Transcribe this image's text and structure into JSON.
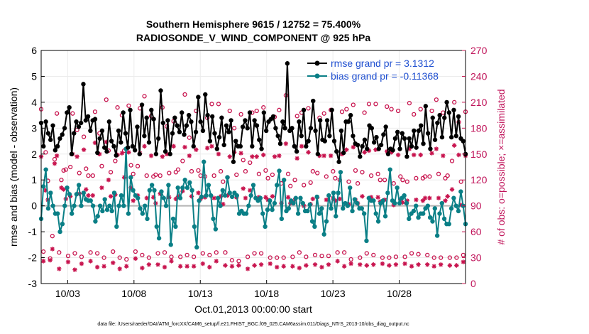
{
  "chart_data": {
    "type": "line",
    "title_line1": "Southern Hemisphere 9615 / 12752 = 75.400%",
    "title_line2": "RADIOSONDE_V_WIND_COMPONENT @ 925 hPa",
    "ylabel": "rmse and bias (model - observation)",
    "y2label": "# of obs: o=possible; ×=assimilated",
    "xlabel": "Oct.01,2013 00:00:00 start",
    "footnote": "data file: /Users/raeder/DAI/ATM_forcXX/CAM6_setup/f.e21.FHIST_BGC.f09_025.CAM6assim.011/Diags_NTrS_2013-10/obs_diag_output.nc",
    "xlim": [
      1,
      33
    ],
    "ylim": [
      -3,
      6
    ],
    "y2lim": [
      0,
      270
    ],
    "xticks": [
      3,
      8,
      13,
      18,
      23,
      28
    ],
    "xtick_labels": [
      "10/03",
      "10/08",
      "10/13",
      "10/18",
      "10/23",
      "10/28"
    ],
    "yticks": [
      -3,
      -2,
      -1,
      0,
      1,
      2,
      3,
      4,
      5,
      6
    ],
    "ytick_labels": [
      "-3",
      "-2",
      "-1",
      "0",
      "1",
      "2",
      "3",
      "4",
      "5",
      "6"
    ],
    "y2ticks": [
      0,
      30,
      60,
      90,
      120,
      150,
      180,
      210,
      240,
      270
    ],
    "y2tick_labels": [
      "0",
      "30",
      "60",
      "90",
      "120",
      "150",
      "180",
      "210",
      "240",
      "270"
    ],
    "legend": [
      {
        "name": "rmse grand pr = 3.1312",
        "color": "#000000"
      },
      {
        "name": "bias grand pr = -0.11368",
        "color": "#0a7f86"
      }
    ],
    "colors": {
      "rmse": "#000000",
      "bias": "#0a7f86",
      "obs": "#c8154f",
      "zero": "#b4b4b4",
      "grid": "#ececec"
    },
    "series": [
      {
        "name": "rmse",
        "values": [
          3.2,
          2.3,
          3.25,
          2.8,
          2.55,
          3.1,
          2.15,
          2.3,
          2.6,
          2.75,
          3.0,
          3.6,
          3.8,
          2.0,
          2.8,
          3.25,
          3.05,
          3.2,
          4.7,
          3.3,
          3.45,
          2.9,
          3.3,
          3.35,
          2.05,
          2.6,
          2.9,
          2.25,
          2.1,
          3.25,
          2.5,
          2.3,
          1.95,
          2.9,
          2.45,
          3.6,
          2.8,
          2.25,
          3.7,
          2.3,
          2.15,
          3.05,
          2.0,
          3.9,
          2.7,
          3.4,
          2.45,
          3.7,
          3.35,
          2.0,
          2.6,
          4.45,
          3.2,
          2.1,
          3.3,
          2.0,
          2.8,
          3.4,
          3.1,
          2.85,
          3.6,
          2.75,
          3.1,
          3.5,
          3.25,
          2.3,
          2.85,
          4.2,
          3.25,
          2.9,
          4.3,
          3.5,
          2.5,
          3.45,
          2.8,
          2.2,
          2.65,
          3.4,
          2.35,
          3.1,
          2.85,
          3.3,
          1.7,
          2.5,
          2.3,
          2.3,
          3.05,
          3.3,
          3.0,
          3.6,
          2.3,
          3.3,
          3.1,
          2.55,
          2.2,
          3.6,
          2.9,
          3.25,
          3.35,
          3.45,
          3.0,
          2.7,
          2.4,
          3.25,
          3.0,
          5.5,
          2.9,
          3.0,
          2.3,
          2.1,
          3.25,
          2.7,
          3.7,
          2.3,
          2.5,
          3.0,
          4.05,
          2.9,
          2.0,
          3.3,
          2.55,
          2.5,
          3.3,
          2.7,
          3.7,
          2.5,
          2.1,
          1.7,
          2.9,
          2.05,
          3.25,
          3.25,
          3.5,
          2.7,
          2.4,
          2.35,
          1.9,
          2.3,
          2.55,
          2.2,
          3.1,
          3.0,
          2.45,
          2.65,
          2.2,
          2.35,
          2.75,
          3.05,
          2.0,
          2.2,
          2.15,
          2.6,
          2.85,
          2.2,
          2.8,
          2.6,
          1.9,
          2.6,
          2.3,
          2.9,
          2.25,
          2.9,
          3.1,
          2.4,
          3.85,
          2.8,
          2.2,
          3.4,
          2.55,
          3.2,
          3.5,
          2.65,
          3.4,
          4.0,
          3.6,
          2.65,
          3.7,
          2.7,
          3.45,
          2.6,
          2.5,
          2.0
        ]
      },
      {
        "name": "bias",
        "values": [
          -0.5,
          0.75,
          1.4,
          -0.1,
          0.5,
          0.0,
          -0.3,
          -0.3,
          -1.0,
          -0.7,
          0.0,
          0.7,
          0.45,
          -0.3,
          0.0,
          0.45,
          0.8,
          0.0,
          0.5,
          0.25,
          0.2,
          0.2,
          0.0,
          -0.6,
          -0.4,
          0.0,
          -0.2,
          0.25,
          -0.15,
          0.0,
          -0.2,
          0.5,
          -0.8,
          0.0,
          0.4,
          0.0,
          2.2,
          -0.3,
          1.1,
          0.6,
          0.4,
          0.3,
          -0.1,
          -0.3,
          0.0,
          -0.5,
          0.6,
          0.8,
          0.6,
          -0.8,
          -1.25,
          0.55,
          0.3,
          0.0,
          0.8,
          -1.5,
          -0.5,
          -0.8,
          0.7,
          0.3,
          0.7,
          1.0,
          0.7,
          0.9,
          0.6,
          -0.8,
          -1.6,
          0.2,
          0.35,
          1.7,
          0.4,
          0.8,
          0.4,
          -0.5,
          -0.9,
          0.3,
          0.0,
          0.6,
          0.4,
          1.1,
          0.5,
          0.35,
          0.5,
          0.4,
          -0.3,
          -0.2,
          -0.3,
          -0.3,
          0.0,
          0.4,
          0.8,
          0.3,
          0.2,
          0.3,
          -0.3,
          -0.8,
          -0.15,
          0.2,
          -0.15,
          0.1,
          0.8,
          1.35,
          -0.5,
          1.0,
          -0.2,
          -0.1,
          0.2,
          0.1,
          0.3,
          -0.3,
          0.3,
          0.1,
          -0.2,
          -0.2,
          0.05,
          -0.6,
          -0.8,
          0.35,
          -0.3,
          -0.1,
          -1.1,
          -0.6,
          0.4,
          -0.1,
          0.5,
          -0.4,
          0.5,
          1.3,
          -0.1,
          0.1,
          0.0,
          0.7,
          -0.2,
          0.25,
          0.1,
          -0.1,
          -0.1,
          -0.3,
          -1.35,
          0.3,
          0.2,
          0.2,
          -0.3,
          -0.6,
          0.1,
          0.2,
          -0.4,
          0.5,
          1.4,
          0.2,
          0.1,
          0.7,
          0.1,
          0.3,
          0.4,
          0.1,
          -0.5,
          -0.3,
          -0.2,
          0.0,
          -0.45,
          -0.3,
          -0.3,
          -0.1,
          0.0,
          -0.45,
          -0.6,
          -0.1,
          -1.15,
          -0.3,
          0.1,
          -0.5,
          -0.7,
          -0.7,
          -0.1,
          0.3,
          0.0,
          -0.2,
          0.55,
          0.0,
          -0.7
        ]
      },
      {
        "name": "obs_possible",
        "values": [
          202,
          37,
          152,
          119,
          29,
          55,
          144,
          197,
          36,
          120,
          131,
          132,
          32,
          135,
          197,
          35,
          178,
          128,
          31,
          170,
          133,
          125,
          36,
          125,
          199,
          35,
          174,
          136,
          30,
          213,
          154,
          129,
          37,
          142,
          204,
          30,
          195,
          154,
          28,
          206,
          137,
          127,
          37,
          136,
          203,
          33,
          217,
          125,
          30,
          194,
          124,
          126,
          35,
          125,
          204,
          36,
          182,
          128,
          31,
          188,
          129,
          132,
          31,
          142,
          219,
          33,
          169,
          130,
          31,
          200,
          131,
          125,
          35,
          124,
          192,
          33,
          208,
          125,
          36,
          208,
          130,
          118,
          36,
          123,
          200,
          27,
          180,
          126,
          26,
          196,
          143,
          130,
          31,
          140,
          198,
          35,
          200,
          127,
          35,
          204,
          131,
          122,
          30,
          126,
          193,
          30,
          201,
          116,
          30,
          218,
          127,
          113,
          31,
          120,
          194,
          36,
          198,
          114,
          31,
          203,
          117,
          130,
          33,
          128,
          192,
          32,
          197,
          124,
          32,
          201,
          130,
          122,
          36,
          120,
          199,
          36,
          202,
          118,
          28,
          207,
          131,
          116,
          30,
          129,
          198,
          35,
          208,
          125,
          33,
          208,
          127,
          120,
          30,
          120,
          205,
          30,
          202,
          116,
          31,
          200,
          124,
          120,
          31,
          118,
          209,
          35,
          196,
          122,
          34,
          202,
          122,
          124,
          33,
          124,
          200,
          30,
          213,
          127,
          30,
          198,
          122,
          125,
          30,
          142,
          210,
          30,
          187,
          118,
          33,
          199
        ]
      },
      {
        "name": "obs_assimilated",
        "values": [
          147,
          26,
          108,
          97,
          27,
          40,
          139,
          148,
          17,
          111,
          109,
          98,
          25,
          101,
          150,
          16,
          147,
          104,
          23,
          155,
          109,
          102,
          26,
          102,
          163,
          19,
          150,
          111,
          20,
          164,
          120,
          101,
          24,
          103,
          149,
          17,
          151,
          123,
          20,
          152,
          111,
          96,
          29,
          102,
          151,
          18,
          159,
          99,
          22,
          148,
          100,
          93,
          22,
          104,
          147,
          19,
          150,
          100,
          26,
          159,
          98,
          101,
          20,
          107,
          158,
          20,
          148,
          101,
          20,
          155,
          105,
          98,
          23,
          100,
          157,
          19,
          159,
          99,
          26,
          150,
          101,
          92,
          21,
          102,
          147,
          20,
          152,
          100,
          21,
          151,
          110,
          99,
          17,
          108,
          147,
          21,
          147,
          100,
          22,
          149,
          100,
          97,
          23,
          101,
          147,
          19,
          148,
          93,
          20,
          162,
          100,
          93,
          20,
          97,
          145,
          18,
          159,
          90,
          21,
          152,
          92,
          98,
          22,
          100,
          148,
          19,
          148,
          97,
          22,
          148,
          99,
          96,
          26,
          98,
          150,
          20,
          155,
          92,
          23,
          158,
          97,
          93,
          22,
          101,
          152,
          21,
          154,
          100,
          22,
          155,
          100,
          95,
          23,
          97,
          153,
          21,
          152,
          91,
          22,
          149,
          97,
          94,
          23,
          96,
          156,
          20,
          149,
          97,
          22,
          149,
          96,
          99,
          22,
          99,
          151,
          20,
          156,
          99,
          22,
          148,
          96,
          101,
          21,
          109,
          160,
          21,
          149,
          91,
          25,
          148
        ]
      }
    ]
  }
}
